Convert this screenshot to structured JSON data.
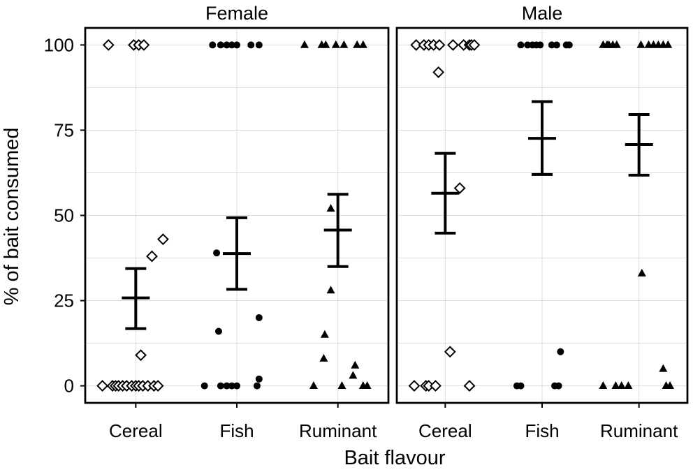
{
  "chart_data": {
    "type": "scatter",
    "xlabel": "Bait flavour",
    "ylabel": "% of bait consumed",
    "ylim": [
      -5,
      105
    ],
    "yticks": [
      0,
      25,
      50,
      75,
      100
    ],
    "categories": [
      "Cereal",
      "Fish",
      "Ruminant"
    ],
    "grid": true,
    "marker_shapes": {
      "Cereal": "diamond-open",
      "Fish": "circle-filled",
      "Ruminant": "triangle-filled"
    },
    "panels": [
      {
        "title": "Female",
        "groups": [
          {
            "category": "Cereal",
            "mean": 25.8,
            "lower": 16.8,
            "upper": 34.4,
            "points": [
              {
                "j": -0.27,
                "y": 100
              },
              {
                "j": -0.02,
                "y": 100
              },
              {
                "j": 0.03,
                "y": 100
              },
              {
                "j": 0.08,
                "y": 100
              },
              {
                "j": 0.16,
                "y": 38
              },
              {
                "j": 0.27,
                "y": 43
              },
              {
                "j": 0.05,
                "y": 9
              },
              {
                "j": -0.33,
                "y": 0
              },
              {
                "j": -0.23,
                "y": 0
              },
              {
                "j": -0.2,
                "y": 0
              },
              {
                "j": -0.17,
                "y": 0
              },
              {
                "j": -0.13,
                "y": 0
              },
              {
                "j": -0.09,
                "y": 0
              },
              {
                "j": -0.04,
                "y": 0
              },
              {
                "j": 0.0,
                "y": 0
              },
              {
                "j": 0.03,
                "y": 0
              },
              {
                "j": 0.07,
                "y": 0
              },
              {
                "j": 0.12,
                "y": 0
              },
              {
                "j": 0.18,
                "y": 0
              },
              {
                "j": 0.22,
                "y": 0
              }
            ]
          },
          {
            "category": "Fish",
            "mean": 38.8,
            "lower": 28.3,
            "upper": 49.3,
            "points": [
              {
                "j": -0.24,
                "y": 100
              },
              {
                "j": -0.16,
                "y": 100
              },
              {
                "j": -0.1,
                "y": 100
              },
              {
                "j": -0.05,
                "y": 100
              },
              {
                "j": 0.0,
                "y": 100
              },
              {
                "j": 0.14,
                "y": 100
              },
              {
                "j": 0.22,
                "y": 100
              },
              {
                "j": -0.2,
                "y": 39
              },
              {
                "j": -0.18,
                "y": 16
              },
              {
                "j": 0.22,
                "y": 20
              },
              {
                "j": 0.22,
                "y": 2
              },
              {
                "j": -0.32,
                "y": 0
              },
              {
                "j": -0.16,
                "y": 0
              },
              {
                "j": -0.1,
                "y": 0
              },
              {
                "j": -0.05,
                "y": 0
              },
              {
                "j": 0.0,
                "y": 0
              },
              {
                "j": 0.2,
                "y": 0
              }
            ]
          },
          {
            "category": "Ruminant",
            "mean": 45.7,
            "lower": 35.0,
            "upper": 56.2,
            "points": [
              {
                "j": -0.33,
                "y": 100
              },
              {
                "j": -0.16,
                "y": 100
              },
              {
                "j": -0.12,
                "y": 100
              },
              {
                "j": -0.02,
                "y": 100
              },
              {
                "j": 0.06,
                "y": 100
              },
              {
                "j": 0.19,
                "y": 100
              },
              {
                "j": 0.25,
                "y": 100
              },
              {
                "j": -0.07,
                "y": 52
              },
              {
                "j": -0.07,
                "y": 28
              },
              {
                "j": -0.13,
                "y": 15
              },
              {
                "j": -0.14,
                "y": 8
              },
              {
                "j": 0.17,
                "y": 6
              },
              {
                "j": 0.15,
                "y": 3
              },
              {
                "j": -0.24,
                "y": 0
              },
              {
                "j": 0.04,
                "y": 0
              },
              {
                "j": 0.25,
                "y": 0
              },
              {
                "j": 0.29,
                "y": 0
              }
            ]
          }
        ]
      },
      {
        "title": "Male",
        "groups": [
          {
            "category": "Cereal",
            "mean": 56.5,
            "lower": 44.8,
            "upper": 68.2,
            "points": [
              {
                "j": -0.3,
                "y": 100
              },
              {
                "j": -0.22,
                "y": 100
              },
              {
                "j": -0.17,
                "y": 100
              },
              {
                "j": -0.12,
                "y": 100
              },
              {
                "j": -0.06,
                "y": 100
              },
              {
                "j": 0.08,
                "y": 100
              },
              {
                "j": 0.19,
                "y": 100
              },
              {
                "j": 0.25,
                "y": 100
              },
              {
                "j": 0.27,
                "y": 100
              },
              {
                "j": 0.3,
                "y": 100
              },
              {
                "j": -0.07,
                "y": 92
              },
              {
                "j": 0.15,
                "y": 58
              },
              {
                "j": 0.05,
                "y": 10
              },
              {
                "j": -0.32,
                "y": 0
              },
              {
                "j": -0.2,
                "y": 0
              },
              {
                "j": -0.17,
                "y": 0
              },
              {
                "j": -0.1,
                "y": 0
              },
              {
                "j": 0.25,
                "y": 0
              }
            ]
          },
          {
            "category": "Fish",
            "mean": 72.6,
            "lower": 62.0,
            "upper": 83.4,
            "points": [
              {
                "j": -0.22,
                "y": 100
              },
              {
                "j": -0.15,
                "y": 100
              },
              {
                "j": -0.1,
                "y": 100
              },
              {
                "j": -0.06,
                "y": 100
              },
              {
                "j": -0.02,
                "y": 100
              },
              {
                "j": 0.1,
                "y": 100
              },
              {
                "j": 0.15,
                "y": 100
              },
              {
                "j": 0.25,
                "y": 100
              },
              {
                "j": 0.28,
                "y": 100
              },
              {
                "j": 0.19,
                "y": 10
              },
              {
                "j": -0.26,
                "y": 0
              },
              {
                "j": -0.22,
                "y": 0
              },
              {
                "j": 0.13,
                "y": 0
              },
              {
                "j": 0.17,
                "y": 0
              }
            ]
          },
          {
            "category": "Ruminant",
            "mean": 70.8,
            "lower": 61.8,
            "upper": 79.6,
            "points": [
              {
                "j": -0.37,
                "y": 100
              },
              {
                "j": -0.33,
                "y": 100
              },
              {
                "j": -0.31,
                "y": 100
              },
              {
                "j": -0.27,
                "y": 100
              },
              {
                "j": -0.23,
                "y": 100
              },
              {
                "j": 0.02,
                "y": 100
              },
              {
                "j": 0.1,
                "y": 100
              },
              {
                "j": 0.15,
                "y": 100
              },
              {
                "j": 0.2,
                "y": 100
              },
              {
                "j": 0.25,
                "y": 100
              },
              {
                "j": 0.3,
                "y": 100
              },
              {
                "j": 0.03,
                "y": 33
              },
              {
                "j": 0.25,
                "y": 5
              },
              {
                "j": -0.37,
                "y": 0
              },
              {
                "j": -0.24,
                "y": 0
              },
              {
                "j": -0.18,
                "y": 0
              },
              {
                "j": -0.11,
                "y": 0
              },
              {
                "j": 0.28,
                "y": 0
              },
              {
                "j": 0.32,
                "y": 0
              }
            ]
          }
        ]
      }
    ]
  }
}
